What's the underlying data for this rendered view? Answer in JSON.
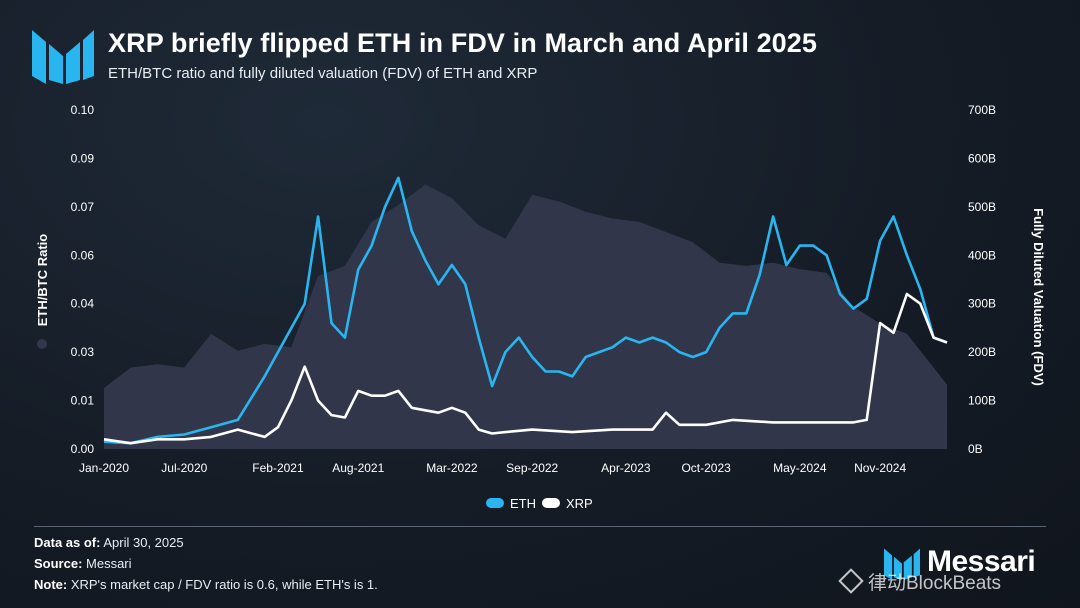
{
  "header": {
    "title": "XRP briefly flipped ETH in FDV in March and April 2025",
    "subtitle": "ETH/BTC ratio and fully diluted valuation (FDV) of ETH and XRP"
  },
  "footer": {
    "data_as_of_label": "Data as of:",
    "data_as_of_value": " April 30, 2025",
    "source_label": "Source:",
    "source_value": " Messari",
    "note_label": "Note:",
    "note_value": " XRP's market cap / FDV ratio is 0.6, while ETH's is 1."
  },
  "brand": {
    "name": "Messari"
  },
  "watermark": {
    "text": "律动BlockBeats"
  },
  "colors": {
    "eth": "#29b6f0",
    "xrp": "#ffffff",
    "ratio_area": "#33384d",
    "grid": "#3a4350",
    "logo": "#29b6f0"
  },
  "chart_data": {
    "type": "line",
    "title": "XRP briefly flipped ETH in FDV in March and April 2025",
    "subtitle": "ETH/BTC ratio and fully diluted valuation (FDV) of ETH and XRP",
    "x_ticks": [
      "Jan-2020",
      "Jul-2020",
      "Feb-2021",
      "Aug-2021",
      "Mar-2022",
      "Sep-2022",
      "Apr-2023",
      "Oct-2023",
      "May-2024",
      "Nov-2024"
    ],
    "x_tick_months": [
      "2020-01",
      "2020-07",
      "2021-02",
      "2021-08",
      "2022-03",
      "2022-09",
      "2023-04",
      "2023-10",
      "2024-05",
      "2024-11"
    ],
    "x_range": [
      "2020-01",
      "2025-04"
    ],
    "y_left": {
      "label": "ETH/BTC Ratio",
      "range": [
        0,
        0.1
      ],
      "ticks": [
        "0.00",
        "0.01",
        "0.03",
        "0.04",
        "0.06",
        "0.07",
        "0.09",
        "0.10"
      ],
      "tick_values": [
        0.0,
        0.01428,
        0.02857,
        0.04285,
        0.05714,
        0.07142,
        0.08571,
        0.1
      ]
    },
    "y_right": {
      "label": "Fully Diluted Valuation (FDV)",
      "unit": "B",
      "range": [
        0,
        700
      ],
      "ticks": [
        "0B",
        "100B",
        "200B",
        "300B",
        "400B",
        "500B",
        "600B",
        "700B"
      ],
      "tick_values": [
        0,
        100,
        200,
        300,
        400,
        500,
        600,
        700
      ]
    },
    "grid": false,
    "legend_position": "bottom-center",
    "series": [
      {
        "name": "ETH/BTC Ratio",
        "kind": "area",
        "axis": "left",
        "x": [
          "2020-01",
          "2020-03",
          "2020-05",
          "2020-07",
          "2020-09",
          "2020-11",
          "2021-01",
          "2021-03",
          "2021-05",
          "2021-07",
          "2021-09",
          "2021-11",
          "2022-01",
          "2022-03",
          "2022-05",
          "2022-07",
          "2022-09",
          "2022-11",
          "2023-01",
          "2023-03",
          "2023-05",
          "2023-07",
          "2023-09",
          "2023-11",
          "2024-01",
          "2024-03",
          "2024-05",
          "2024-07",
          "2024-09",
          "2024-11",
          "2025-01",
          "2025-03",
          "2025-04"
        ],
        "values": [
          0.018,
          0.024,
          0.025,
          0.024,
          0.034,
          0.029,
          0.031,
          0.03,
          0.051,
          0.054,
          0.067,
          0.072,
          0.078,
          0.074,
          0.066,
          0.062,
          0.075,
          0.073,
          0.07,
          0.068,
          0.067,
          0.064,
          0.061,
          0.055,
          0.054,
          0.055,
          0.053,
          0.052,
          0.042,
          0.037,
          0.034,
          0.024,
          0.019
        ]
      },
      {
        "name": "ETH",
        "kind": "line",
        "axis": "right",
        "x": [
          "2020-01",
          "2020-03",
          "2020-05",
          "2020-07",
          "2020-09",
          "2020-11",
          "2021-01",
          "2021-02",
          "2021-04",
          "2021-05",
          "2021-06",
          "2021-07",
          "2021-08",
          "2021-09",
          "2021-10",
          "2021-11",
          "2021-12",
          "2022-01",
          "2022-02",
          "2022-03",
          "2022-04",
          "2022-05",
          "2022-06",
          "2022-07",
          "2022-08",
          "2022-09",
          "2022-10",
          "2022-11",
          "2022-12",
          "2023-01",
          "2023-02",
          "2023-03",
          "2023-04",
          "2023-05",
          "2023-06",
          "2023-07",
          "2023-08",
          "2023-09",
          "2023-10",
          "2023-11",
          "2023-12",
          "2024-01",
          "2024-02",
          "2024-03",
          "2024-04",
          "2024-05",
          "2024-06",
          "2024-07",
          "2024-08",
          "2024-09",
          "2024-10",
          "2024-11",
          "2024-12",
          "2025-01",
          "2025-02",
          "2025-03",
          "2025-04"
        ],
        "values": [
          15,
          12,
          25,
          30,
          45,
          60,
          150,
          200,
          300,
          480,
          260,
          230,
          370,
          420,
          500,
          560,
          450,
          390,
          340,
          380,
          340,
          230,
          130,
          200,
          230,
          190,
          160,
          160,
          150,
          190,
          200,
          210,
          230,
          220,
          230,
          220,
          200,
          190,
          200,
          250,
          280,
          280,
          360,
          480,
          380,
          420,
          420,
          400,
          320,
          290,
          310,
          430,
          480,
          400,
          330,
          230,
          220
        ]
      },
      {
        "name": "XRP",
        "kind": "line",
        "axis": "right",
        "x": [
          "2020-01",
          "2020-03",
          "2020-05",
          "2020-07",
          "2020-09",
          "2020-11",
          "2021-01",
          "2021-02",
          "2021-03",
          "2021-04",
          "2021-05",
          "2021-06",
          "2021-07",
          "2021-08",
          "2021-09",
          "2021-10",
          "2021-11",
          "2021-12",
          "2022-01",
          "2022-02",
          "2022-03",
          "2022-04",
          "2022-05",
          "2022-06",
          "2022-07",
          "2022-09",
          "2022-12",
          "2023-03",
          "2023-06",
          "2023-07",
          "2023-08",
          "2023-10",
          "2023-12",
          "2024-03",
          "2024-06",
          "2024-09",
          "2024-10",
          "2024-11",
          "2024-12",
          "2025-01",
          "2025-02",
          "2025-03",
          "2025-04"
        ],
        "values": [
          20,
          12,
          20,
          20,
          25,
          40,
          25,
          45,
          100,
          170,
          100,
          70,
          65,
          120,
          110,
          110,
          120,
          85,
          80,
          75,
          85,
          75,
          40,
          32,
          35,
          40,
          35,
          40,
          40,
          75,
          50,
          50,
          60,
          55,
          55,
          55,
          60,
          260,
          240,
          320,
          300,
          230,
          220
        ]
      }
    ],
    "legend": [
      {
        "name": "ETH"
      },
      {
        "name": "XRP"
      }
    ]
  }
}
